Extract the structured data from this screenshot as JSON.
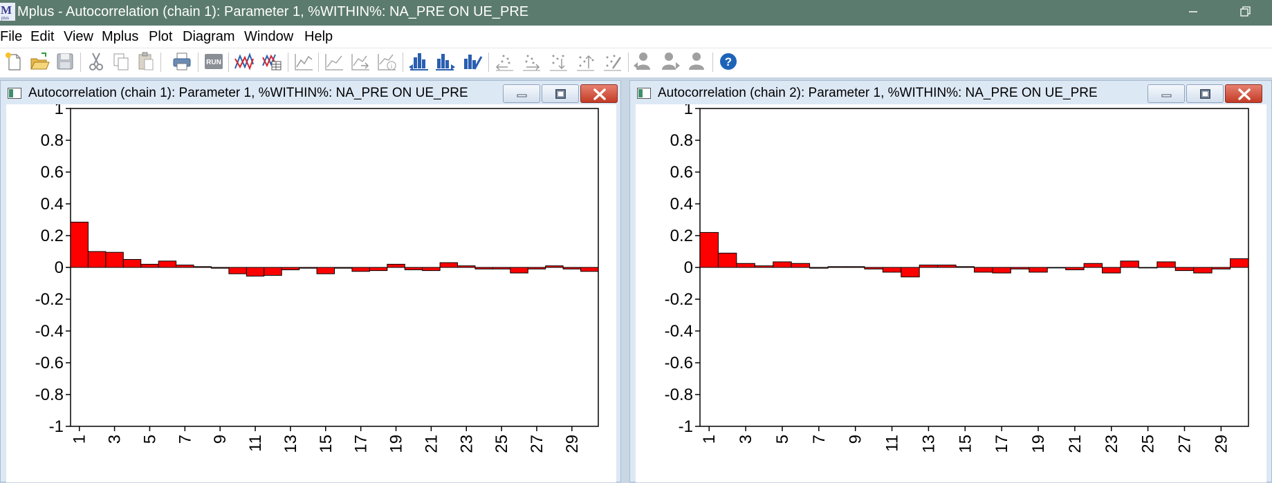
{
  "app": {
    "title": "Mplus - Autocorrelation (chain 1): Parameter 1, %WITHIN%: NA_PRE ON UE_PRE"
  },
  "menu": [
    "File",
    "Edit",
    "View",
    "Mplus",
    "Plot",
    "Diagram",
    "Window",
    "Help"
  ],
  "toolbar": {
    "run_label": "RUN",
    "buttons": [
      "new-file-icon",
      "open-file-icon",
      "save-icon",
      "cut-icon",
      "copy-icon",
      "paste-icon",
      "print-icon",
      "run-icon",
      "line-plot-icon",
      "plot-table-icon",
      "trace-plot-icon",
      "plot-disabled-icon",
      "plot-arrow-icon",
      "plot-info-icon",
      "bar-chart-left-icon",
      "bar-chart-right-icon",
      "bar-chart-edit-icon",
      "scatter-left-icon",
      "scatter-right-icon",
      "scatter-down-icon",
      "scatter-up-icon",
      "scatter-edit-icon",
      "user-left-icon",
      "user-right-icon",
      "user-icon",
      "help-icon"
    ]
  },
  "windows": [
    {
      "title": "Autocorrelation (chain 1): Parameter 1, %WITHIN%: NA_PRE ON UE_PRE"
    },
    {
      "title": "Autocorrelation (chain 2): Parameter 1, %WITHIN%: NA_PRE ON UE_PRE"
    }
  ],
  "chart_data": [
    {
      "type": "bar",
      "color": "#ff0000",
      "ylim": [
        -1,
        1
      ],
      "yticks": [
        "1",
        "0.8",
        "0.6",
        "0.4",
        "0.2",
        "0",
        "-0.2",
        "-0.4",
        "-0.6",
        "-0.8",
        "-1"
      ],
      "categories": [
        1,
        2,
        3,
        4,
        5,
        6,
        7,
        8,
        9,
        10,
        11,
        12,
        13,
        14,
        15,
        16,
        17,
        18,
        19,
        20,
        21,
        22,
        23,
        24,
        25,
        26,
        27,
        28,
        29,
        30
      ],
      "xtick_labels": [
        "1",
        "3",
        "5",
        "7",
        "9",
        "11",
        "13",
        "15",
        "17",
        "19",
        "21",
        "23",
        "25",
        "27",
        "29"
      ],
      "values": [
        0.285,
        0.1,
        0.095,
        0.05,
        0.02,
        0.04,
        0.015,
        0.005,
        -0.005,
        -0.04,
        -0.055,
        -0.05,
        -0.015,
        -0.005,
        -0.04,
        -0.005,
        -0.025,
        -0.02,
        0.02,
        -0.015,
        -0.02,
        0.03,
        0.01,
        -0.01,
        -0.01,
        -0.035,
        -0.01,
        0.01,
        -0.01,
        -0.025
      ]
    },
    {
      "type": "bar",
      "color": "#ff0000",
      "ylim": [
        -1,
        1
      ],
      "yticks": [
        "1",
        "0.8",
        "0.6",
        "0.4",
        "0.2",
        "0",
        "-0.2",
        "-0.4",
        "-0.6",
        "-0.8",
        "-1"
      ],
      "categories": [
        1,
        2,
        3,
        4,
        5,
        6,
        7,
        8,
        9,
        10,
        11,
        12,
        13,
        14,
        15,
        16,
        17,
        18,
        19,
        20,
        21,
        22,
        23,
        24,
        25,
        26,
        27,
        28,
        29,
        30
      ],
      "xtick_labels": [
        "1",
        "3",
        "5",
        "7",
        "9",
        "11",
        "13",
        "15",
        "17",
        "19",
        "21",
        "23",
        "25",
        "27",
        "29"
      ],
      "values": [
        0.22,
        0.09,
        0.025,
        0.01,
        0.035,
        0.025,
        -0.005,
        0.005,
        0.005,
        -0.01,
        -0.03,
        -0.06,
        0.015,
        0.015,
        0.005,
        -0.03,
        -0.035,
        -0.01,
        -0.03,
        0.0,
        -0.015,
        0.025,
        -0.035,
        0.04,
        0.0,
        0.035,
        -0.02,
        -0.035,
        -0.01,
        0.055
      ]
    }
  ]
}
